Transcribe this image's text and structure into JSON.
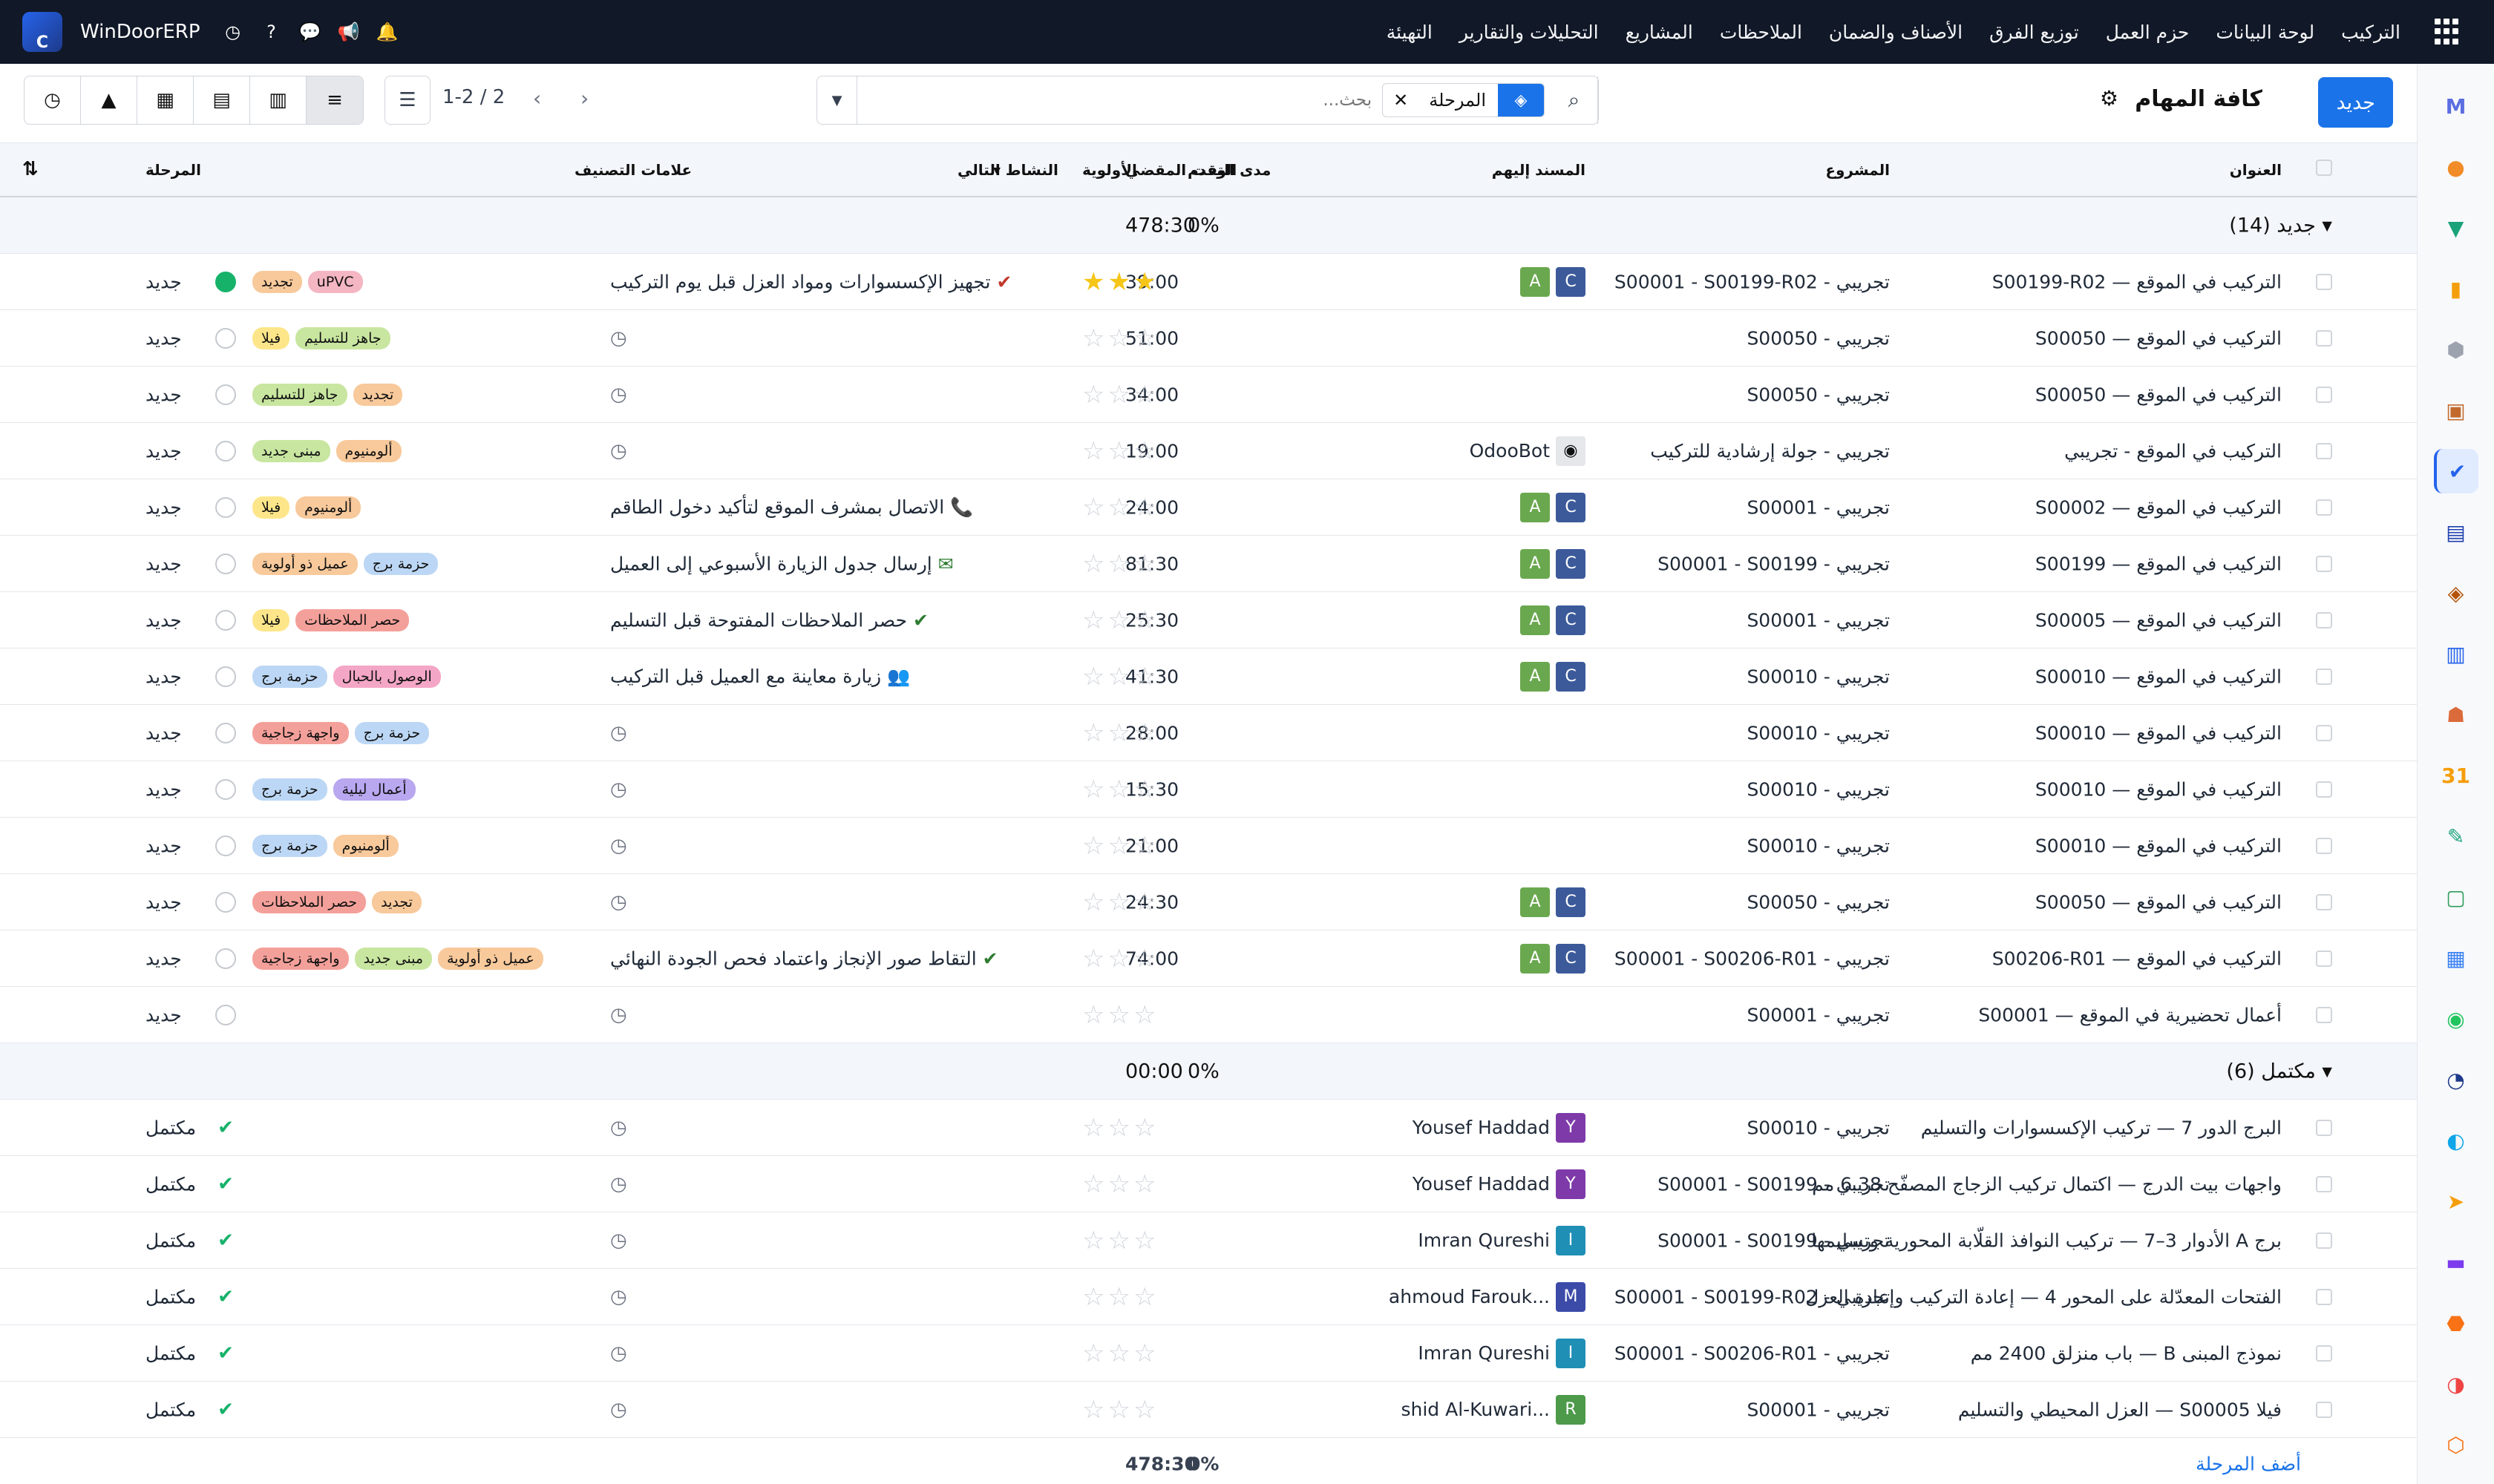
{
  "topnav": {
    "menus": [
      "التركيب",
      "لوحة البيانات",
      "حزم العمل",
      "توزيع الفرق",
      "الأصناف والضمان",
      "الملاحظات",
      "المشاريع",
      "التحليلات والتقارير",
      "التهيئة"
    ],
    "brand": "WinDoorERP",
    "logo_letter": "C"
  },
  "controls": {
    "new_label": "جديد",
    "title": "كافة المهام",
    "search_placeholder": "بحث...",
    "facet_label": "المرحلة",
    "pager": "1-2 / 2"
  },
  "headers": {
    "title": "العنوان",
    "project": "المشروع",
    "assignees": "المسند إليهم",
    "time_spent": "الوقت المقضي",
    "progress": "مدى التقدم",
    "priority": "الأولوية",
    "next_activity": "النشاط التالي",
    "tags": "علامات التصنيف",
    "stage": "المرحلة"
  },
  "groups": [
    {
      "label": "جديد (14)",
      "time": "478:30",
      "progress": "0%",
      "rows": [
        {
          "title": "التركيب في الموقع — S00199-R02",
          "project": "تجريبي - S00001 - S00199-R02",
          "assignees": [
            {
              "l": "A",
              "c": "#6aa84f"
            },
            {
              "l": "C",
              "c": "#3c5a9a"
            }
          ],
          "time": "39:00",
          "stars": true,
          "activity": "تجهيز الإكسسوارات ومواد العزل قبل يوم التركيب",
          "act_icon": "✔",
          "act_color": "#c0392b",
          "tags": [
            {
              "t": "uPVC",
              "c": "#f4b6c2"
            },
            {
              "t": "تجديد",
              "c": "#f8c99b"
            }
          ],
          "state": "green",
          "stage": "جديد"
        },
        {
          "title": "التركيب في الموقع — S00050",
          "project": "تجريبي - S00050",
          "assignees": [],
          "time": "51:00",
          "stars": false,
          "activity": "",
          "act_icon": "",
          "act_color": "",
          "tags": [
            {
              "t": "جاهز للتسليم",
              "c": "#c8e6a0"
            },
            {
              "t": "فيلا",
              "c": "#fde68a"
            }
          ],
          "state": "",
          "stage": "جديد"
        },
        {
          "title": "التركيب في الموقع — S00050",
          "project": "تجريبي - S00050",
          "assignees": [],
          "time": "34:00",
          "stars": false,
          "activity": "",
          "act_icon": "",
          "act_color": "",
          "tags": [
            {
              "t": "تجديد",
              "c": "#f8c99b"
            },
            {
              "t": "جاهز للتسليم",
              "c": "#c8e6a0"
            }
          ],
          "state": "",
          "stage": "جديد"
        },
        {
          "title": "التركيب في الموقع - تجريبي",
          "project": "تجريبي - جولة إرشادية للتركيب",
          "assignees": [
            {
              "l": "OdooBot",
              "c": "bot"
            }
          ],
          "time": "19:00",
          "stars": false,
          "activity": "",
          "act_icon": "",
          "act_color": "",
          "tags": [
            {
              "t": "ألومنيوم",
              "c": "#f8c99b"
            },
            {
              "t": "مبنى جديد",
              "c": "#c8e6a0"
            }
          ],
          "state": "",
          "stage": "جديد"
        },
        {
          "title": "التركيب في الموقع — S00002",
          "project": "تجريبي - S00001",
          "assignees": [
            {
              "l": "A",
              "c": "#6aa84f"
            },
            {
              "l": "C",
              "c": "#3c5a9a"
            }
          ],
          "time": "24:00",
          "stars": false,
          "activity": "الاتصال بمشرف الموقع لتأكيد دخول الطاقم",
          "act_icon": "📞",
          "act_color": "#c0392b",
          "tags": [
            {
              "t": "ألومنيوم",
              "c": "#f8c99b"
            },
            {
              "t": "فيلا",
              "c": "#fde68a"
            }
          ],
          "state": "",
          "stage": "جديد"
        },
        {
          "title": "التركيب في الموقع — S00199",
          "project": "تجريبي - S00001 - S00199",
          "assignees": [
            {
              "l": "A",
              "c": "#6aa84f"
            },
            {
              "l": "C",
              "c": "#3c5a9a"
            }
          ],
          "time": "81:30",
          "stars": false,
          "activity": "إرسال جدول الزيارة الأسبوعي إلى العميل",
          "act_icon": "✉",
          "act_color": "#2e7d32",
          "tags": [
            {
              "t": "حزمة برج",
              "c": "#bcd7f5"
            },
            {
              "t": "عميل ذو أولوية",
              "c": "#f8c99b"
            }
          ],
          "state": "",
          "stage": "جديد"
        },
        {
          "title": "التركيب في الموقع — S00005",
          "project": "تجريبي - S00001",
          "assignees": [
            {
              "l": "A",
              "c": "#6aa84f"
            },
            {
              "l": "C",
              "c": "#3c5a9a"
            }
          ],
          "time": "25:30",
          "stars": false,
          "activity": "حصر الملاحظات المفتوحة قبل التسليم",
          "act_icon": "✔",
          "act_color": "#2e7d32",
          "tags": [
            {
              "t": "حصر الملاحظات",
              "c": "#f4a09a"
            },
            {
              "t": "فيلا",
              "c": "#fde68a"
            }
          ],
          "state": "",
          "stage": "جديد"
        },
        {
          "title": "التركيب في الموقع — S00010",
          "project": "تجريبي - S00010",
          "assignees": [
            {
              "l": "A",
              "c": "#6aa84f"
            },
            {
              "l": "C",
              "c": "#3c5a9a"
            }
          ],
          "time": "41:30",
          "stars": false,
          "activity": "زيارة معاينة مع العميل قبل التركيب",
          "act_icon": "👥",
          "act_color": "#c0392b",
          "tags": [
            {
              "t": "الوصول بالحبال",
              "c": "#f4a6c6"
            },
            {
              "t": "حزمة برج",
              "c": "#bcd7f5"
            }
          ],
          "state": "",
          "stage": "جديد"
        },
        {
          "title": "التركيب في الموقع — S00010",
          "project": "تجريبي - S00010",
          "assignees": [],
          "time": "28:00",
          "stars": false,
          "activity": "",
          "act_icon": "",
          "act_color": "",
          "tags": [
            {
              "t": "حزمة برج",
              "c": "#bcd7f5"
            },
            {
              "t": "واجهة زجاجية",
              "c": "#f4a09a"
            }
          ],
          "state": "",
          "stage": "جديد"
        },
        {
          "title": "التركيب في الموقع — S00010",
          "project": "تجريبي - S00010",
          "assignees": [],
          "time": "15:30",
          "stars": false,
          "activity": "",
          "act_icon": "",
          "act_color": "",
          "tags": [
            {
              "t": "أعمال ليلية",
              "c": "#b9a7f0"
            },
            {
              "t": "حزمة برج",
              "c": "#bcd7f5"
            }
          ],
          "state": "",
          "stage": "جديد"
        },
        {
          "title": "التركيب في الموقع — S00010",
          "project": "تجريبي - S00010",
          "assignees": [],
          "time": "21:00",
          "stars": false,
          "activity": "",
          "act_icon": "",
          "act_color": "",
          "tags": [
            {
              "t": "ألومنيوم",
              "c": "#f8c99b"
            },
            {
              "t": "حزمة برج",
              "c": "#bcd7f5"
            }
          ],
          "state": "",
          "stage": "جديد"
        },
        {
          "title": "التركيب في الموقع — S00050",
          "project": "تجريبي - S00050",
          "assignees": [
            {
              "l": "A",
              "c": "#6aa84f"
            },
            {
              "l": "C",
              "c": "#3c5a9a"
            }
          ],
          "time": "24:30",
          "stars": false,
          "activity": "",
          "act_icon": "",
          "act_color": "",
          "tags": [
            {
              "t": "تجديد",
              "c": "#f8c99b"
            },
            {
              "t": "حصر الملاحظات",
              "c": "#f4a09a"
            }
          ],
          "state": "",
          "stage": "جديد"
        },
        {
          "title": "التركيب في الموقع — S00206-R01",
          "project": "تجريبي - S00001 - S00206-R01",
          "assignees": [
            {
              "l": "A",
              "c": "#6aa84f"
            },
            {
              "l": "C",
              "c": "#3c5a9a"
            }
          ],
          "time": "74:00",
          "stars": false,
          "activity": "التقاط صور الإنجاز واعتماد فحص الجودة النهائي",
          "act_icon": "✔",
          "act_color": "#2e7d32",
          "tags": [
            {
              "t": "عميل ذو أولوية",
              "c": "#f8c99b"
            },
            {
              "t": "مبنى جديد",
              "c": "#c8e6a0"
            },
            {
              "t": "واجهة زجاجية",
              "c": "#f4a09a"
            }
          ],
          "state": "",
          "stage": "جديد"
        },
        {
          "title": "أعمال تحضيرية في الموقع — S00001",
          "project": "تجريبي - S00001",
          "assignees": [],
          "time": "",
          "stars": false,
          "activity": "",
          "act_icon": "",
          "act_color": "",
          "tags": [],
          "state": "",
          "stage": "جديد"
        }
      ]
    },
    {
      "label": "مكتمل (6)",
      "time": "00:00",
      "progress": "0%",
      "rows": [
        {
          "title": "البرج الدور 7 — تركيب الإكسسوارات والتسليم",
          "project": "تجريبي - S00010",
          "assignees": [
            {
              "l": "Y",
              "c": "#7e3aa8",
              "n": "Yousef Haddad"
            }
          ],
          "time": "",
          "stars": false,
          "activity": "",
          "act_icon": "",
          "act_color": "",
          "tags": [],
          "state": "done",
          "stage": "مكتمل"
        },
        {
          "title": "واجهات بيت الدرج — اكتمال تركيب الزجاج المصفّح 6.38 مم",
          "project": "تجريبي - S00001 - S00199",
          "assignees": [
            {
              "l": "Y",
              "c": "#7e3aa8",
              "n": "Yousef Haddad"
            }
          ],
          "time": "",
          "stars": false,
          "activity": "",
          "act_icon": "",
          "act_color": "",
          "tags": [],
          "state": "done",
          "stage": "مكتمل"
        },
        {
          "title": "برج A الأدوار 3–7 — تركيب النوافذ القلّابة المحورية وتسليمها",
          "project": "تجريبي - S00001 - S00199",
          "assignees": [
            {
              "l": "I",
              "c": "#1f8fb5",
              "n": "Imran Qureshi"
            }
          ],
          "time": "",
          "stars": false,
          "activity": "",
          "act_icon": "",
          "act_color": "",
          "tags": [],
          "state": "done",
          "stage": "مكتمل"
        },
        {
          "title": "الفتحات المعدّلة على المحور 4 — إعادة التركيب وإعادة العزل",
          "project": "تجريبي - S00001 - S00199-R02",
          "assignees": [
            {
              "l": "M",
              "c": "#3c4aa8",
              "n": "ahmoud Farouk..."
            }
          ],
          "time": "",
          "stars": false,
          "activity": "",
          "act_icon": "",
          "act_color": "",
          "tags": [],
          "state": "done",
          "stage": "مكتمل"
        },
        {
          "title": "نموذج المبنى B — باب منزلق 2400 مم",
          "project": "تجريبي - S00001 - S00206-R01",
          "assignees": [
            {
              "l": "I",
              "c": "#1f8fb5",
              "n": "Imran Qureshi"
            }
          ],
          "time": "",
          "stars": false,
          "activity": "",
          "act_icon": "",
          "act_color": "",
          "tags": [],
          "state": "done",
          "stage": "مكتمل"
        },
        {
          "title": "فيلا S00005 — العزل المحيطي والتسليم",
          "project": "تجريبي - S00001",
          "assignees": [
            {
              "l": "R",
              "c": "#4c9a4a",
              "n": "shid Al-Kuwari..."
            }
          ],
          "time": "",
          "stars": false,
          "activity": "",
          "act_icon": "",
          "act_color": "",
          "tags": [],
          "state": "done",
          "stage": "مكتمل"
        }
      ]
    }
  ],
  "footer": {
    "add_stage": "أضف المرحلة",
    "time_total": "478:30",
    "progress_total": "0%"
  },
  "sidebar_icons": [
    {
      "name": "m-icon",
      "g": "M",
      "c": "#5b6ee1"
    },
    {
      "name": "chat-bubble-icon",
      "g": "●",
      "c": "#f28c28"
    },
    {
      "name": "triangle-icon",
      "g": "▼",
      "c": "#1aa37a"
    },
    {
      "name": "bar-chart-icon",
      "g": "▮",
      "c": "#f59e0b"
    },
    {
      "name": "cube-icon",
      "g": "⬢",
      "c": "#9ca3af"
    },
    {
      "name": "photo-icon",
      "g": "▣",
      "c": "#c26a2d"
    },
    {
      "name": "check-task-icon",
      "g": "✔",
      "c": "#2563eb"
    },
    {
      "name": "book-icon",
      "g": "▤",
      "c": "#1e40af"
    },
    {
      "name": "box-icon",
      "g": "◈",
      "c": "#b45309"
    },
    {
      "name": "document-icon",
      "g": "▥",
      "c": "#2563eb"
    },
    {
      "name": "team-icon",
      "g": "☗",
      "c": "#dc6b3b"
    },
    {
      "name": "calendar-icon",
      "g": "31",
      "c": "#f59e0b"
    },
    {
      "name": "pen-icon",
      "g": "✎",
      "c": "#1aa37a"
    },
    {
      "name": "contact-icon",
      "g": "▢",
      "c": "#2e9e5b"
    },
    {
      "name": "grid-icon",
      "g": "▦",
      "c": "#3b82f6"
    },
    {
      "name": "whatsapp-icon",
      "g": "◉",
      "c": "#22c55e"
    },
    {
      "name": "clock-icon",
      "g": "◔",
      "c": "#1e3a8a"
    },
    {
      "name": "wave-icon",
      "g": "◐",
      "c": "#0ea5e9"
    },
    {
      "name": "send-icon",
      "g": "➤",
      "c": "#f59e0b"
    },
    {
      "name": "layers-icon",
      "g": "▬",
      "c": "#7c3aed"
    },
    {
      "name": "hex-icon",
      "g": "⬣",
      "c": "#f97316"
    },
    {
      "name": "pie-icon",
      "g": "◑",
      "c": "#ef4444"
    },
    {
      "name": "hex-outline-icon",
      "g": "⬡",
      "c": "#f97316"
    }
  ]
}
